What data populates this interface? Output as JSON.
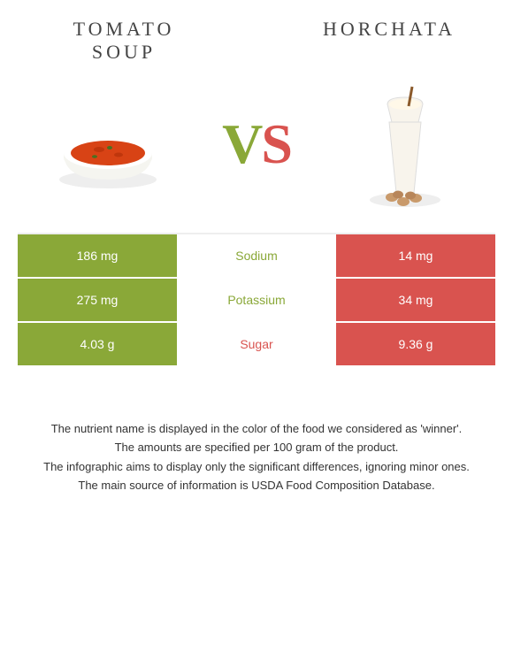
{
  "left_food": {
    "title": "TOMATO SOUP",
    "color": "#8aa838"
  },
  "right_food": {
    "title": "HORCHATA",
    "color": "#d9534f"
  },
  "vs": {
    "v": "V",
    "s": "S"
  },
  "rows": [
    {
      "nutrient": "Sodium",
      "left_value": "186 mg",
      "right_value": "14 mg",
      "left_bg": "#8aa838",
      "right_bg": "#d9534f",
      "nutrient_color": "#8aa838"
    },
    {
      "nutrient": "Potassium",
      "left_value": "275 mg",
      "right_value": "34 mg",
      "left_bg": "#8aa838",
      "right_bg": "#d9534f",
      "nutrient_color": "#8aa838"
    },
    {
      "nutrient": "Sugar",
      "left_value": "4.03 g",
      "right_value": "9.36 g",
      "left_bg": "#8aa838",
      "right_bg": "#d9534f",
      "nutrient_color": "#d9534f"
    }
  ],
  "footnotes": [
    "The nutrient name is displayed in the color of the food we considered as 'winner'.",
    "The amounts are specified per 100 gram of the product.",
    "The infographic aims to display only the significant differences, ignoring minor ones.",
    "The main source of information is USDA Food Composition Database."
  ]
}
